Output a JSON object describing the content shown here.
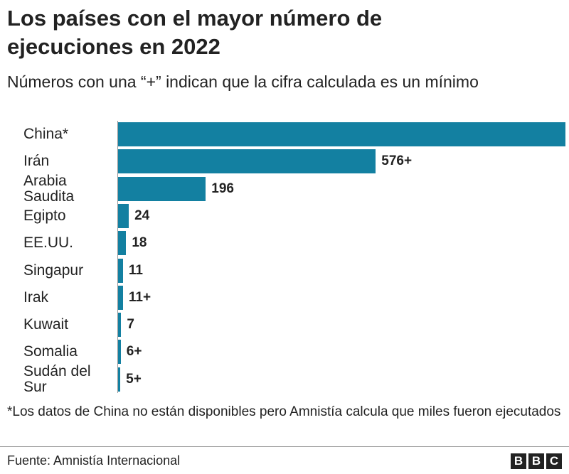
{
  "chart_data": {
    "type": "bar",
    "orientation": "horizontal",
    "title": "Los países con el mayor número de ejecuciones en 2022",
    "subtitle": "Números con una “+” indican que la cifra calculada es un mínimo",
    "categories": [
      "China*",
      "Irán",
      "Arabia Saudita",
      "Egipto",
      "EE.UU.",
      "Singapur",
      "Irak",
      "Kuwait",
      "Somalia",
      "Sudán del Sur"
    ],
    "values": [
      1000,
      576,
      196,
      24,
      18,
      11,
      11,
      7,
      6,
      5
    ],
    "value_labels": [
      null,
      "576+",
      "196",
      "24",
      "18",
      "11",
      "11+",
      "7",
      "6+",
      "5+"
    ],
    "color": "#1380a1",
    "xlim": [
      0,
      1000
    ],
    "note": "*Los datos de China no están disponibles pero Amnistía calcula que miles fueron ejecutados",
    "source": "Fuente: Amnistía Internacional",
    "logo": "BBC"
  }
}
